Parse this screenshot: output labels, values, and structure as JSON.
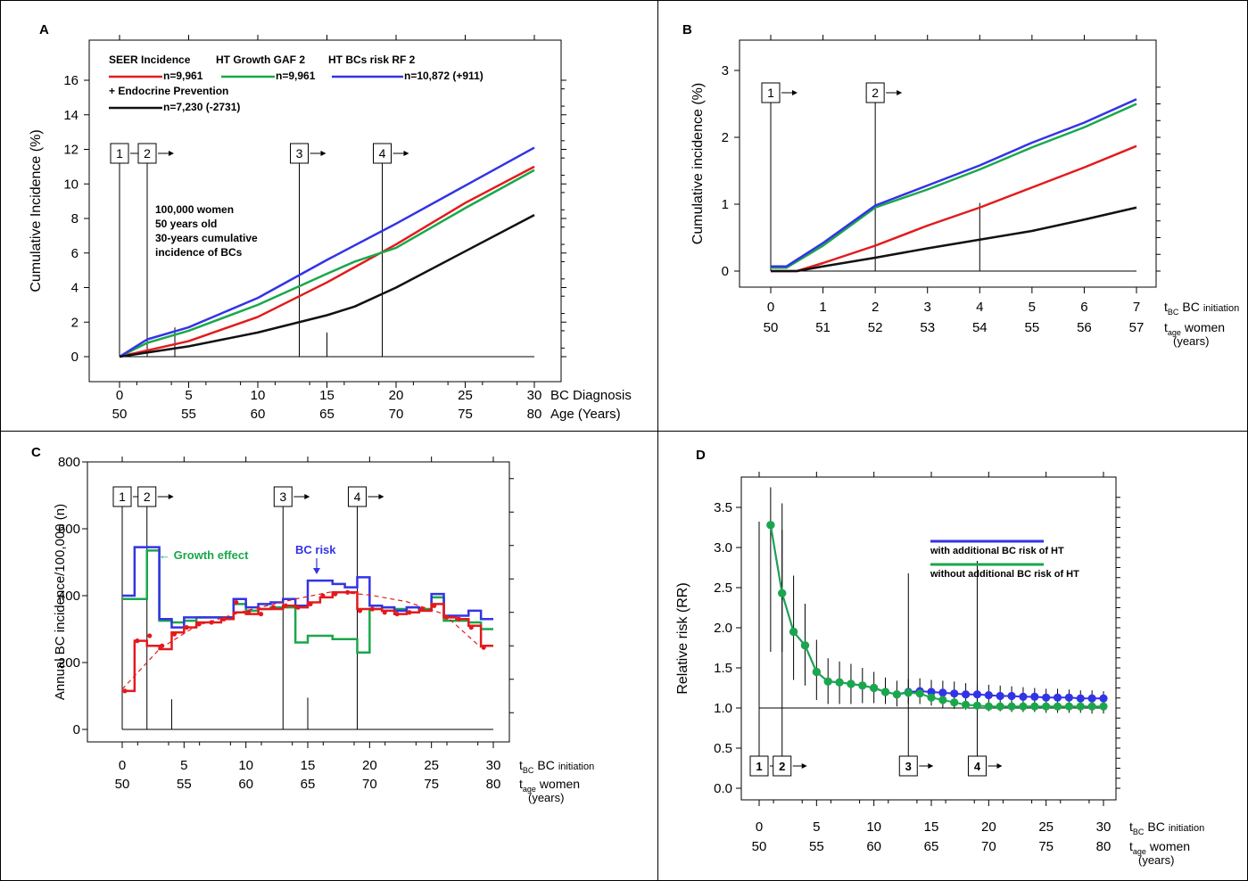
{
  "colors": {
    "red": "#e31a1c",
    "green": "#1aa74b",
    "blue": "#3333e6",
    "black": "#111111"
  },
  "chart_data": [
    {
      "panel": "A",
      "type": "line",
      "ylabel": "Cumulative Incidence (%)",
      "xlabel_line1": "BC Diagnosis",
      "xlabel_line2": "Age  (Years)",
      "xlim": [
        0,
        30
      ],
      "ylim": [
        0,
        16
      ],
      "x_ticks": [
        "0",
        "5",
        "10",
        "15",
        "20",
        "25",
        "30"
      ],
      "age_ticks": [
        "50",
        "55",
        "60",
        "65",
        "70",
        "75",
        "80"
      ],
      "y_ticks": [
        "0",
        "2",
        "4",
        "6",
        "8",
        "10",
        "12",
        "14",
        "16"
      ],
      "legend": {
        "h1": "SEER Incidence",
        "h2": "HT Growth GAF 2",
        "h3": "HT BCs risk RF 2",
        "n1": "n=9,961",
        "n2": "n=9,961",
        "n3": "n=10,872 (+911)",
        "h4": "+ Endocrine Prevention",
        "n4": "n=7,230 (-2731)"
      },
      "annotation": [
        "100,000 women",
        "50 years old",
        "30-years cumulative",
        "incidence of BCs"
      ],
      "markers": [
        {
          "label": "1",
          "x": 0
        },
        {
          "label": "2",
          "x": 2
        },
        {
          "label": "3",
          "x": 13
        },
        {
          "label": "4",
          "x": 19
        }
      ],
      "series": [
        {
          "color": "red",
          "x": [
            0,
            5,
            10,
            15,
            20,
            25,
            30
          ],
          "y": [
            0,
            0.9,
            2.3,
            4.3,
            6.5,
            8.9,
            11.0
          ]
        },
        {
          "color": "green",
          "x": [
            0,
            2,
            5,
            10,
            15,
            17,
            20,
            25,
            30
          ],
          "y": [
            0,
            0.8,
            1.5,
            3.0,
            4.8,
            5.5,
            6.3,
            8.6,
            10.8
          ]
        },
        {
          "color": "blue",
          "x": [
            0,
            2,
            5,
            10,
            15,
            20,
            25,
            30
          ],
          "y": [
            0,
            1.0,
            1.7,
            3.4,
            5.6,
            7.7,
            9.9,
            12.1
          ]
        },
        {
          "color": "black",
          "x": [
            0,
            5,
            10,
            15,
            17,
            20,
            25,
            30
          ],
          "y": [
            0,
            0.6,
            1.4,
            2.4,
            2.9,
            4.0,
            6.1,
            8.2
          ]
        }
      ]
    },
    {
      "panel": "B",
      "type": "line",
      "ylabel": "Cumulative incidence (%)",
      "xlabel_t": "t",
      "xlabel_tsub": "BC",
      "xlabel_main": "BC",
      "xlabel_small": "initiation",
      "age_t": "t",
      "age_sub": "age",
      "age_main": "women",
      "years": "(years)",
      "xlim": [
        0,
        7
      ],
      "ylim": [
        0,
        3
      ],
      "x_ticks": [
        "0",
        "1",
        "2",
        "3",
        "4",
        "5",
        "6",
        "7"
      ],
      "age_ticks": [
        "50",
        "51",
        "52",
        "53",
        "54",
        "55",
        "56",
        "57"
      ],
      "y_ticks": [
        "0",
        "1",
        "2",
        "3"
      ],
      "markers": [
        {
          "label": "1",
          "x": 0
        },
        {
          "label": "2",
          "x": 2
        }
      ],
      "series": [
        {
          "color": "red",
          "x": [
            0,
            0.5,
            1,
            2,
            3,
            4,
            5,
            6,
            7
          ],
          "y": [
            0,
            0,
            0.12,
            0.38,
            0.68,
            0.95,
            1.25,
            1.55,
            1.87
          ]
        },
        {
          "color": "green",
          "x": [
            0,
            0.3,
            1,
            2,
            3,
            4,
            5,
            6,
            7
          ],
          "y": [
            0.05,
            0.05,
            0.38,
            0.95,
            1.22,
            1.52,
            1.85,
            2.15,
            2.5
          ]
        },
        {
          "color": "blue",
          "x": [
            0,
            0.3,
            1,
            2,
            3,
            4,
            5,
            6,
            7
          ],
          "y": [
            0.07,
            0.07,
            0.42,
            0.98,
            1.28,
            1.58,
            1.92,
            2.22,
            2.57
          ]
        },
        {
          "color": "black",
          "x": [
            0,
            0.5,
            1,
            2,
            3,
            4,
            5,
            6,
            7
          ],
          "y": [
            0,
            0,
            0.07,
            0.2,
            0.34,
            0.47,
            0.6,
            0.77,
            0.95
          ]
        }
      ]
    },
    {
      "panel": "C",
      "type": "line",
      "ylabel": "Annual BC incidence/100,000 (n)",
      "xlabel_t": "t",
      "xlabel_tsub": "BC",
      "xlabel_main": "BC",
      "xlabel_small": "initiation",
      "age_t": "t",
      "age_sub": "age",
      "age_main": "women",
      "years": "(years)",
      "xlim": [
        0,
        30
      ],
      "ylim": [
        0,
        800
      ],
      "x_ticks": [
        "0",
        "5",
        "10",
        "15",
        "20",
        "25",
        "30"
      ],
      "age_ticks": [
        "50",
        "55",
        "60",
        "65",
        "70",
        "75",
        "80"
      ],
      "y_ticks": [
        "0",
        "200",
        "400",
        "600",
        "800"
      ],
      "label_growth": "← Growth effect",
      "label_bcrisk": "BC risk",
      "markers": [
        {
          "label": "1",
          "x": 0
        },
        {
          "label": "2",
          "x": 2
        },
        {
          "label": "3",
          "x": 13
        },
        {
          "label": "4",
          "x": 19
        }
      ],
      "red_steps": [
        115,
        265,
        250,
        240,
        290,
        305,
        320,
        320,
        330,
        350,
        345,
        360,
        360,
        370,
        365,
        380,
        395,
        410,
        410,
        360,
        360,
        355,
        345,
        350,
        355,
        375,
        335,
        330,
        310,
        250
      ],
      "green_steps": [
        390,
        390,
        535,
        325,
        320,
        325,
        335,
        335,
        335,
        375,
        355,
        360,
        365,
        365,
        260,
        280,
        280,
        270,
        270,
        230,
        360,
        365,
        360,
        365,
        360,
        395,
        325,
        325,
        320,
        300
      ],
      "blue_steps": [
        400,
        545,
        545,
        330,
        305,
        335,
        335,
        335,
        335,
        390,
        365,
        375,
        380,
        390,
        370,
        445,
        445,
        435,
        425,
        455,
        370,
        365,
        355,
        365,
        355,
        405,
        340,
        340,
        355,
        330
      ],
      "red_points": [
        [
          0,
          115
        ],
        [
          1,
          265
        ],
        [
          2,
          280
        ],
        [
          3,
          250
        ],
        [
          4,
          285
        ],
        [
          5,
          305
        ],
        [
          6,
          315
        ],
        [
          7,
          320
        ],
        [
          8,
          330
        ],
        [
          9,
          380
        ],
        [
          10,
          350
        ],
        [
          11,
          345
        ],
        [
          12,
          365
        ],
        [
          13,
          370
        ],
        [
          14,
          365
        ],
        [
          15,
          375
        ],
        [
          16,
          400
        ],
        [
          17,
          405
        ],
        [
          18,
          410
        ],
        [
          19,
          355
        ],
        [
          20,
          360
        ],
        [
          21,
          350
        ],
        [
          22,
          345
        ],
        [
          23,
          350
        ],
        [
          24,
          360
        ],
        [
          25,
          370
        ],
        [
          26,
          335
        ],
        [
          27,
          330
        ],
        [
          28,
          305
        ],
        [
          29,
          245
        ]
      ],
      "fit_curve": [
        [
          0,
          120
        ],
        [
          3,
          240
        ],
        [
          6,
          310
        ],
        [
          10,
          355
        ],
        [
          14,
          390
        ],
        [
          17,
          412
        ],
        [
          20,
          402
        ],
        [
          23,
          382
        ],
        [
          26,
          345
        ],
        [
          29,
          245
        ]
      ]
    },
    {
      "panel": "D",
      "type": "scatter",
      "ylabel": "Relative risk (RR)",
      "xlabel_t": "t",
      "xlabel_tsub": "BC",
      "xlabel_main": "BC",
      "xlabel_small": "initiation",
      "age_t": "t",
      "age_sub": "age",
      "age_main": "women",
      "years": "(years)",
      "xlim": [
        0,
        30
      ],
      "ylim": [
        0,
        3.5
      ],
      "x_ticks": [
        "0",
        "5",
        "10",
        "15",
        "20",
        "25",
        "30"
      ],
      "age_ticks": [
        "50",
        "55",
        "60",
        "65",
        "70",
        "75",
        "80"
      ],
      "y_ticks": [
        "0.0",
        "0.5",
        "1.0",
        "1.5",
        "2.0",
        "2.5",
        "3.0",
        "3.5"
      ],
      "legend": [
        {
          "name": "with additional BC risk of HT",
          "color": "blue"
        },
        {
          "name": "without additional BC risk of HT",
          "color": "green"
        }
      ],
      "markers": [
        {
          "label": "1",
          "x": 0
        },
        {
          "label": "2",
          "x": 2
        },
        {
          "label": "3",
          "x": 13
        },
        {
          "label": "4",
          "x": 19
        }
      ],
      "x": [
        1,
        2,
        3,
        4,
        5,
        6,
        7,
        8,
        9,
        10,
        11,
        12,
        13,
        14,
        15,
        16,
        17,
        18,
        19,
        20,
        21,
        22,
        23,
        24,
        25,
        26,
        27,
        28,
        29,
        30
      ],
      "blue": [
        3.28,
        2.43,
        1.95,
        1.78,
        1.45,
        1.33,
        1.32,
        1.3,
        1.28,
        1.25,
        1.2,
        1.17,
        1.2,
        1.21,
        1.2,
        1.19,
        1.18,
        1.17,
        1.17,
        1.16,
        1.15,
        1.15,
        1.14,
        1.14,
        1.13,
        1.13,
        1.13,
        1.12,
        1.12,
        1.12
      ],
      "green": [
        3.28,
        2.43,
        1.95,
        1.78,
        1.45,
        1.33,
        1.32,
        1.3,
        1.28,
        1.25,
        1.2,
        1.17,
        1.19,
        1.18,
        1.13,
        1.1,
        1.07,
        1.04,
        1.03,
        1.02,
        1.02,
        1.02,
        1.02,
        1.02,
        1.02,
        1.02,
        1.02,
        1.02,
        1.02,
        1.02
      ],
      "err_upper": [
        3.75,
        3.55,
        2.65,
        2.3,
        1.85,
        1.62,
        1.58,
        1.55,
        1.5,
        1.45,
        1.38,
        1.34,
        1.36,
        1.37,
        1.35,
        1.34,
        1.33,
        1.31,
        1.3,
        1.29,
        1.28,
        1.27,
        1.26,
        1.25,
        1.24,
        1.24,
        1.23,
        1.22,
        1.22,
        1.21
      ],
      "err_lower": [
        1.7,
        1.7,
        1.35,
        1.28,
        1.1,
        1.05,
        1.05,
        1.05,
        1.06,
        1.06,
        1.05,
        1.02,
        1.05,
        1.05,
        1.03,
        1.0,
        0.99,
        0.98,
        0.97,
        0.96,
        0.96,
        0.95,
        0.95,
        0.95,
        0.94,
        0.94,
        0.94,
        0.94,
        0.93,
        0.93
      ]
    }
  ]
}
